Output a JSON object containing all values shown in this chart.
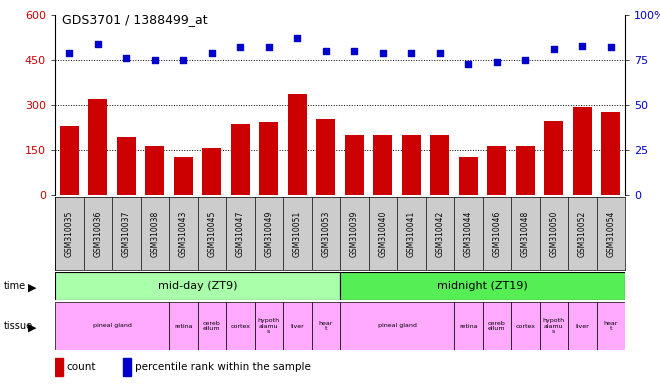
{
  "title": "GDS3701 / 1388499_at",
  "samples": [
    "GSM310035",
    "GSM310036",
    "GSM310037",
    "GSM310038",
    "GSM310043",
    "GSM310045",
    "GSM310047",
    "GSM310049",
    "GSM310051",
    "GSM310053",
    "GSM310039",
    "GSM310040",
    "GSM310041",
    "GSM310042",
    "GSM310044",
    "GSM310046",
    "GSM310048",
    "GSM310050",
    "GSM310052",
    "GSM310054"
  ],
  "counts": [
    230,
    320,
    195,
    165,
    128,
    158,
    238,
    242,
    338,
    252,
    200,
    200,
    200,
    200,
    128,
    165,
    162,
    248,
    293,
    278
  ],
  "percentile": [
    79,
    84,
    76,
    75,
    75,
    79,
    82,
    82,
    87,
    80,
    80,
    79,
    79,
    79,
    73,
    74,
    75,
    81,
    83,
    82
  ],
  "bar_color": "#cc0000",
  "dot_color": "#0000cc",
  "left_ylim": [
    0,
    600
  ],
  "right_ylim": [
    0,
    100
  ],
  "left_yticks": [
    0,
    150,
    300,
    450,
    600
  ],
  "right_yticks": [
    0,
    25,
    50,
    75,
    100
  ],
  "time_groups": [
    {
      "label": "mid-day (ZT9)",
      "start": 0,
      "end": 10,
      "color": "#aaffaa"
    },
    {
      "label": "midnight (ZT19)",
      "start": 10,
      "end": 20,
      "color": "#55ee55"
    }
  ],
  "tissue_segments": [
    {
      "label": "pineal gland",
      "start": 0,
      "end": 4,
      "color": "#ffaaff"
    },
    {
      "label": "retina",
      "start": 4,
      "end": 5,
      "color": "#ffaaff"
    },
    {
      "label": "cereb\nellum",
      "start": 5,
      "end": 6,
      "color": "#ffaaff"
    },
    {
      "label": "cortex",
      "start": 6,
      "end": 7,
      "color": "#ffaaff"
    },
    {
      "label": "hypoth\nalamu\ns",
      "start": 7,
      "end": 8,
      "color": "#ffaaff"
    },
    {
      "label": "liver",
      "start": 8,
      "end": 9,
      "color": "#ffaaff"
    },
    {
      "label": "hear\nt",
      "start": 9,
      "end": 10,
      "color": "#ffaaff"
    },
    {
      "label": "pineal gland",
      "start": 10,
      "end": 14,
      "color": "#ffaaff"
    },
    {
      "label": "retina",
      "start": 14,
      "end": 15,
      "color": "#ffaaff"
    },
    {
      "label": "cereb\nellum",
      "start": 15,
      "end": 16,
      "color": "#ffaaff"
    },
    {
      "label": "cortex",
      "start": 16,
      "end": 17,
      "color": "#ffaaff"
    },
    {
      "label": "hypoth\nalamu\ns",
      "start": 17,
      "end": 18,
      "color": "#ffaaff"
    },
    {
      "label": "liver",
      "start": 18,
      "end": 19,
      "color": "#ffaaff"
    },
    {
      "label": "hear\nt",
      "start": 19,
      "end": 20,
      "color": "#ffaaff"
    }
  ],
  "bg_color": "#ffffff",
  "tick_label_color_left": "#cc0000",
  "tick_label_color_right": "#0000cc",
  "grid_color": "#000000",
  "sample_bg": "#cccccc",
  "fig_width": 6.6,
  "fig_height": 3.84,
  "dpi": 100
}
